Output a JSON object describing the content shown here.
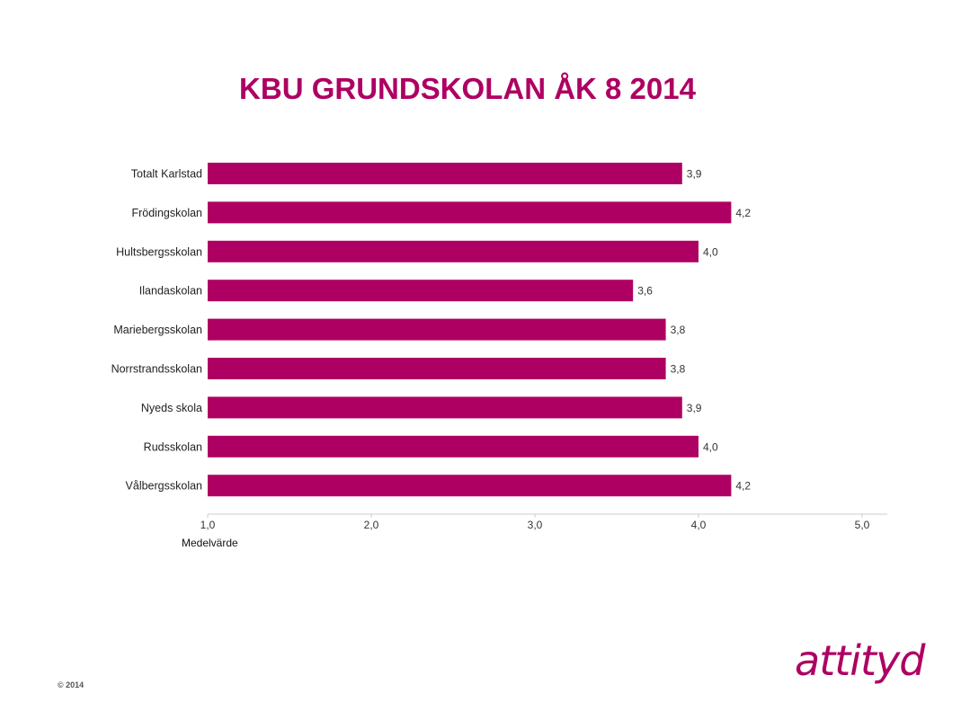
{
  "slide": {
    "copyright": "© 2014",
    "logo_text": "attityd"
  },
  "colors": {
    "accent": "#AE0062",
    "axis": "#CCCCCC"
  },
  "chart_data": {
    "type": "bar",
    "orientation": "horizontal",
    "title": "KBU GRUNDSKOLAN ÅK 8 2014",
    "xlabel": "Medelvärde",
    "ylabel": "",
    "xlim": [
      1.0,
      5.0
    ],
    "ticks": [
      "1,0",
      "2,0",
      "3,0",
      "4,0",
      "5,0"
    ],
    "tick_values": [
      1.0,
      2.0,
      3.0,
      4.0,
      5.0
    ],
    "categories": [
      "Totalt Karlstad",
      "Frödingskolan",
      "Hultsbergsskolan",
      "Ilandaskolan",
      "Mariebergsskolan",
      "Norrstrandsskolan",
      "Nyeds skola",
      "Rudsskolan",
      "Vålbergsskolan"
    ],
    "values": [
      3.9,
      4.2,
      4.0,
      3.6,
      3.8,
      3.8,
      3.9,
      4.0,
      4.2
    ],
    "value_labels": [
      "3,9",
      "4,2",
      "4,0",
      "3,6",
      "3,8",
      "3,8",
      "3,9",
      "4,0",
      "4,2"
    ],
    "grid": false,
    "legend": "none"
  }
}
